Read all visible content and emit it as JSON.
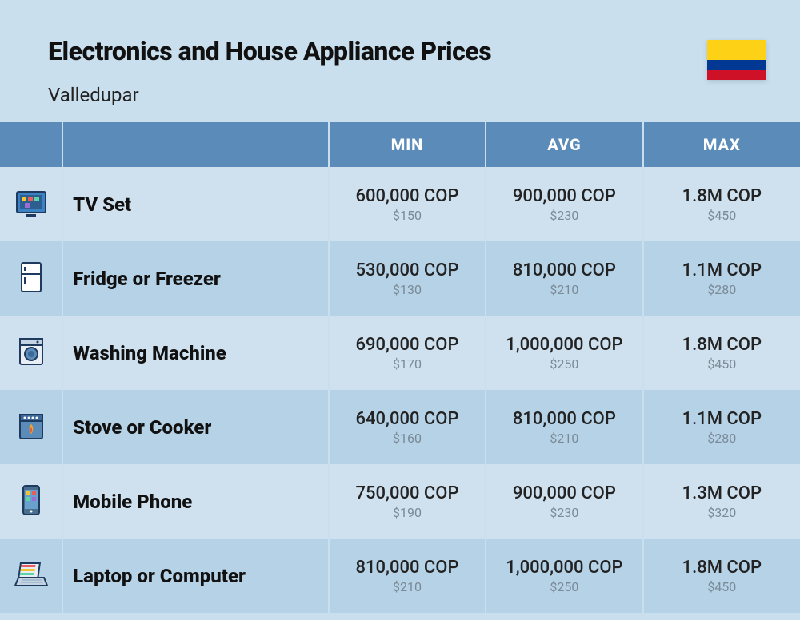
{
  "header": {
    "title": "Electronics and House Appliance Prices",
    "subtitle": "Valledupar",
    "flag_colors": {
      "top": "#fcd116",
      "mid": "#003893",
      "bot": "#ce1126"
    }
  },
  "table": {
    "columns": {
      "min": "MIN",
      "avg": "AVG",
      "max": "MAX"
    },
    "header_bg": "#5b8bb8",
    "header_fg": "#ffffff",
    "row_odd_bg": "#cfe1ef",
    "row_even_bg": "#b6d2e7",
    "cop_color": "#222222",
    "usd_color": "#7a8a96",
    "rows": [
      {
        "icon": "tv",
        "name": "TV Set",
        "min_cop": "600,000 COP",
        "min_usd": "$150",
        "avg_cop": "900,000 COP",
        "avg_usd": "$230",
        "max_cop": "1.8M COP",
        "max_usd": "$450"
      },
      {
        "icon": "fridge",
        "name": "Fridge or Freezer",
        "min_cop": "530,000 COP",
        "min_usd": "$130",
        "avg_cop": "810,000 COP",
        "avg_usd": "$210",
        "max_cop": "1.1M COP",
        "max_usd": "$280"
      },
      {
        "icon": "washer",
        "name": "Washing Machine",
        "min_cop": "690,000 COP",
        "min_usd": "$170",
        "avg_cop": "1,000,000 COP",
        "avg_usd": "$250",
        "max_cop": "1.8M COP",
        "max_usd": "$450"
      },
      {
        "icon": "stove",
        "name": "Stove or Cooker",
        "min_cop": "640,000 COP",
        "min_usd": "$160",
        "avg_cop": "810,000 COP",
        "avg_usd": "$210",
        "max_cop": "1.1M COP",
        "max_usd": "$280"
      },
      {
        "icon": "phone",
        "name": "Mobile Phone",
        "min_cop": "750,000 COP",
        "min_usd": "$190",
        "avg_cop": "900,000 COP",
        "avg_usd": "$230",
        "max_cop": "1.3M COP",
        "max_usd": "$320"
      },
      {
        "icon": "laptop",
        "name": "Laptop or Computer",
        "min_cop": "810,000 COP",
        "min_usd": "$210",
        "avg_cop": "1,000,000 COP",
        "avg_usd": "$250",
        "max_cop": "1.8M COP",
        "max_usd": "$450"
      }
    ]
  }
}
